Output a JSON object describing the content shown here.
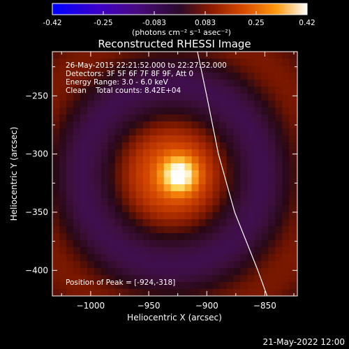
{
  "colorbar": {
    "tick_labels": [
      "-0.42",
      "-0.25",
      "-0.083",
      "0.083",
      "0.25",
      "0.42"
    ],
    "units": "(photons cm⁻² s⁻¹ asec⁻²)"
  },
  "chart_data": {
    "type": "heatmap",
    "title": "Reconstructed RHESSI Image",
    "xlabel": "Heliocentric X (arcsec)",
    "ylabel": "Heliocentric Y (arcsec)",
    "xlim": [
      -1033,
      -822
    ],
    "ylim": [
      -422,
      -212
    ],
    "x_ticks": [
      -1000,
      -950,
      -900,
      -850
    ],
    "x_tick_labels": [
      "−1000",
      "−950",
      "−900",
      "−850"
    ],
    "y_ticks": [
      -250,
      -300,
      -350,
      -400
    ],
    "y_tick_labels": [
      "−250",
      "−300",
      "−350",
      "−400"
    ],
    "zlim": [
      -0.42,
      0.42
    ],
    "colormap": [
      "#0000ff",
      "#400090",
      "#2a0a3a",
      "#7a1500",
      "#c83a00",
      "#ff8800",
      "#ffe060",
      "#ffffff"
    ],
    "peak": [
      -924,
      -318
    ],
    "source": {
      "center": [
        -930,
        -318
      ],
      "core_radius_arcsec": 42,
      "peak_value": 0.42
    },
    "limb_line": [
      [
        -908,
        -212
      ],
      [
        -900,
        -250
      ],
      [
        -890,
        -300
      ],
      [
        -876,
        -350
      ],
      [
        -856,
        -400
      ],
      [
        -848,
        -422
      ]
    ],
    "annotations": [
      "26-May-2015 22:21:52.000 to 22:27:52.000",
      "Detectors: 3F 5F 6F 7F 8F 9F, Att 0",
      "Energy Range: 3.0 - 6.0 keV",
      "Clean    Total counts: 8.42E+04"
    ],
    "peak_label": "Position of Peak = [-924,-318]"
  },
  "footer_timestamp": "21-May-2022 12:00"
}
